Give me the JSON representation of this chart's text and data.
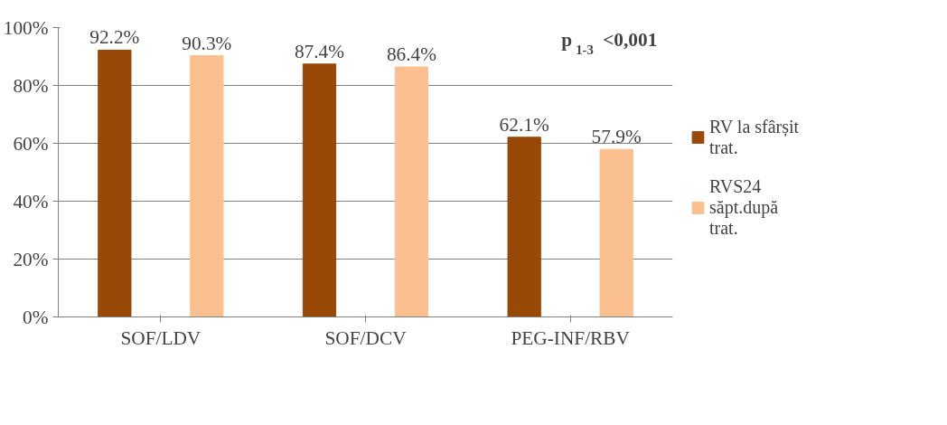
{
  "chart_data": {
    "type": "bar",
    "categories": [
      "SOF/LDV",
      "SOF/DCV",
      "PEG-INF/RBV"
    ],
    "series": [
      {
        "name": "RV la sfârșit trat.",
        "color": "#984807",
        "values": [
          92.2,
          87.4,
          62.1
        ],
        "value_labels": [
          "92.2%",
          "87.4%",
          "62.1%"
        ]
      },
      {
        "name": "RVS24 săpt.după trat.",
        "color": "#fac090",
        "values": [
          90.3,
          86.4,
          57.9
        ],
        "value_labels": [
          "90.3%",
          "86.4%",
          "57.9%"
        ]
      }
    ],
    "ylim": [
      0,
      100
    ],
    "yticks": [
      {
        "value": 0,
        "label": "0%"
      },
      {
        "value": 20,
        "label": "20%"
      },
      {
        "value": 40,
        "label": "40%"
      },
      {
        "value": 60,
        "label": "60%"
      },
      {
        "value": 80,
        "label": "80%"
      },
      {
        "value": 100,
        "label": "100%"
      }
    ],
    "grid": "y",
    "legend": "right",
    "annotations": [
      "p$_{1-3}$<0,001"
    ]
  }
}
